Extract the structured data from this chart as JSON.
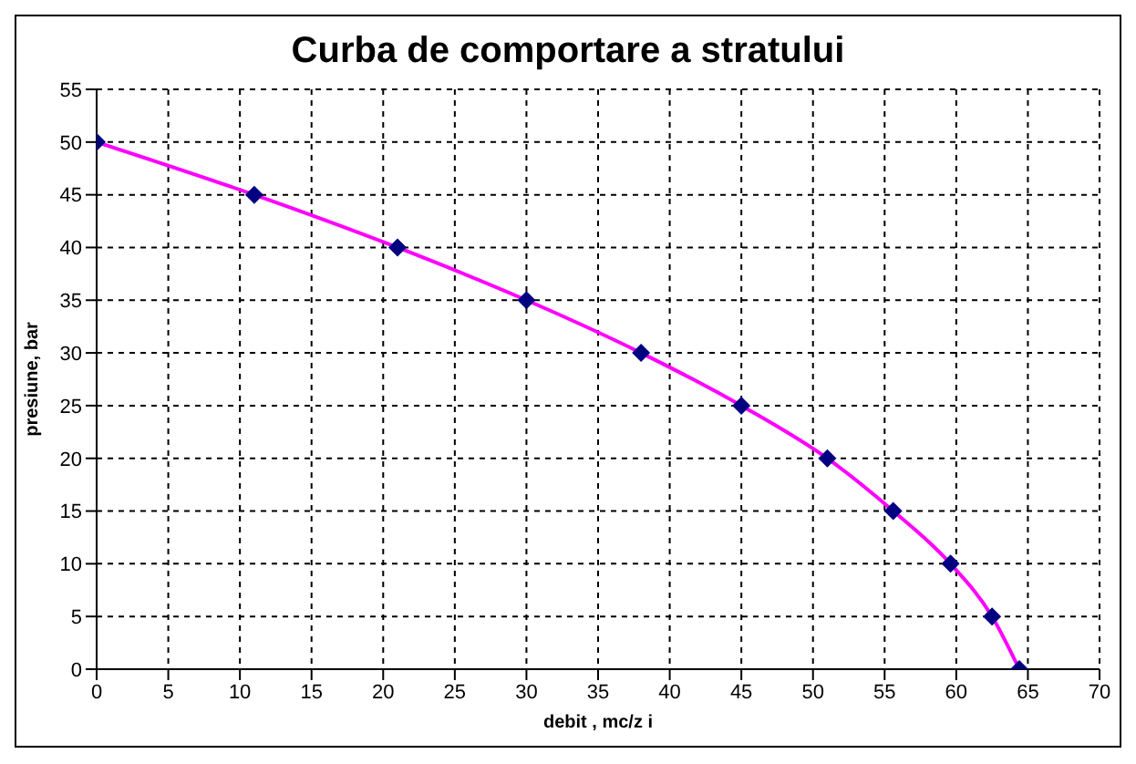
{
  "chart_data": {
    "type": "line",
    "title": "Curba de comportare a stratului",
    "xlabel": "debit , mc/z i",
    "ylabel": "presiune, bar",
    "x": [
      0,
      11,
      21,
      30,
      38,
      45,
      51,
      55.6,
      59.6,
      62.5,
      64.4
    ],
    "series": [
      {
        "color": "#ff00ff",
        "marker": "none",
        "values": [
          50,
          45,
          40,
          35,
          30,
          25,
          20,
          15,
          10,
          5,
          0
        ]
      },
      {
        "type": "scatter",
        "color": "#000080",
        "marker": "diamond",
        "values": [
          50,
          45,
          40,
          35,
          30,
          25,
          20,
          15,
          10,
          5,
          0
        ]
      }
    ],
    "xlim": [
      0,
      70
    ],
    "xticks": [
      0,
      5,
      10,
      15,
      20,
      25,
      30,
      35,
      40,
      45,
      50,
      55,
      60,
      65,
      70
    ],
    "ylim": [
      0,
      55
    ],
    "yticks": [
      0,
      5,
      10,
      15,
      20,
      25,
      30,
      35,
      40,
      45,
      50,
      55
    ],
    "grid": true,
    "line_style": "solid"
  }
}
